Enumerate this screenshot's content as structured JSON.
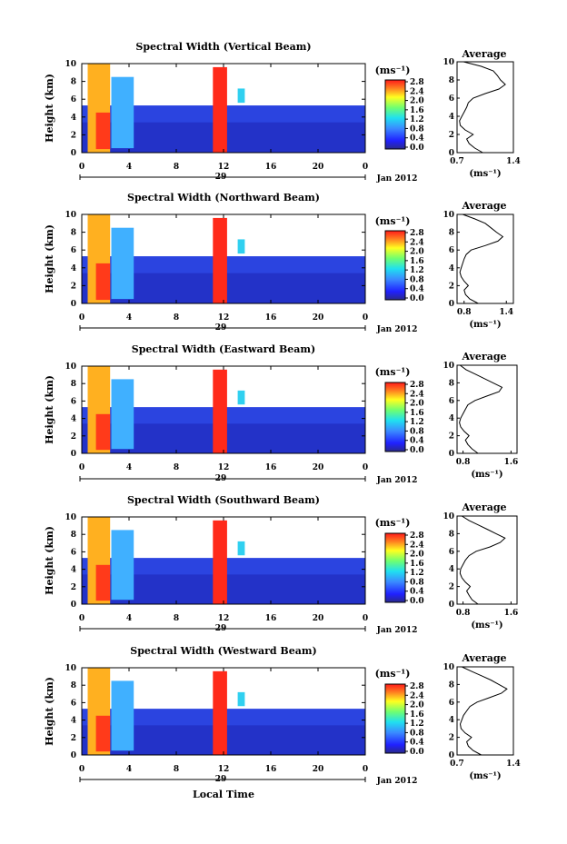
{
  "figure": {
    "common_xlabel": "Local Time",
    "date_label": "Jan 2012",
    "day_label": "29",
    "x_ticks": [
      "0",
      "4",
      "8",
      "12",
      "16",
      "20",
      "0"
    ],
    "y_ticks": [
      "0",
      "2",
      "4",
      "6",
      "8",
      "10"
    ],
    "ylabel": "Height (km)",
    "unit_label": "(ms⁻¹)",
    "profile_title": "Average",
    "colorbar_ticks": [
      "2.8",
      "2.4",
      "2.0",
      "1.6",
      "1.2",
      "0.8",
      "0.4",
      "0.0"
    ]
  },
  "chart_data": [
    {
      "type": "heatmap",
      "title": "Spectral Width (Vertical Beam)",
      "profile_xticks": [
        "0.7",
        "1.4"
      ],
      "profile_xlim": [
        0.7,
        1.4
      ],
      "profile_x": [
        1.02,
        0.92,
        0.85,
        0.82,
        0.9,
        0.8,
        0.74,
        0.73,
        0.76,
        0.79,
        0.82,
        0.84,
        0.9,
        1.05,
        1.22,
        1.3,
        1.24,
        1.2,
        1.15,
        1.0,
        0.78
      ],
      "profile_y": [
        0,
        0.5,
        1,
        1.5,
        2,
        2.5,
        3,
        3.5,
        4,
        4.5,
        5,
        5.5,
        6,
        6.5,
        7,
        7.5,
        8,
        8.5,
        9,
        9.5,
        10
      ]
    },
    {
      "type": "heatmap",
      "title": "Spectral Width (Northward Beam)",
      "profile_xticks": [
        "0.8",
        "1.4"
      ],
      "profile_xlim": [
        0.7,
        1.5
      ],
      "profile_x": [
        1.0,
        0.88,
        0.82,
        0.8,
        0.86,
        0.8,
        0.76,
        0.74,
        0.76,
        0.78,
        0.8,
        0.83,
        0.9,
        1.1,
        1.28,
        1.35,
        1.26,
        1.18,
        1.1,
        0.95,
        0.78
      ],
      "profile_y": [
        0,
        0.5,
        1,
        1.5,
        2,
        2.5,
        3,
        3.5,
        4,
        4.5,
        5,
        5.5,
        6,
        6.5,
        7,
        7.5,
        8,
        8.5,
        9,
        9.5,
        10
      ]
    },
    {
      "type": "heatmap",
      "title": "Spectral Width (Eastward Beam)",
      "profile_xticks": [
        "0.8",
        "1.6"
      ],
      "profile_xlim": [
        0.7,
        1.7
      ],
      "profile_x": [
        1.05,
        0.95,
        0.88,
        0.84,
        0.9,
        0.82,
        0.76,
        0.74,
        0.76,
        0.8,
        0.84,
        0.88,
        1.0,
        1.2,
        1.4,
        1.45,
        1.3,
        1.15,
        1.0,
        0.85,
        0.75
      ],
      "profile_y": [
        0,
        0.5,
        1,
        1.5,
        2,
        2.5,
        3,
        3.5,
        4,
        4.5,
        5,
        5.5,
        6,
        6.5,
        7,
        7.5,
        8,
        8.5,
        9,
        9.5,
        10
      ]
    },
    {
      "type": "heatmap",
      "title": "Spectral Width (Southward Beam)",
      "profile_xticks": [
        "0.8",
        "1.6"
      ],
      "profile_xlim": [
        0.7,
        1.7
      ],
      "profile_x": [
        1.05,
        0.95,
        0.9,
        0.86,
        0.92,
        0.84,
        0.78,
        0.75,
        0.76,
        0.8,
        0.84,
        0.9,
        1.02,
        1.25,
        1.42,
        1.5,
        1.35,
        1.2,
        1.05,
        0.9,
        0.78
      ],
      "profile_y": [
        0,
        0.5,
        1,
        1.5,
        2,
        2.5,
        3,
        3.5,
        4,
        4.5,
        5,
        5.5,
        6,
        6.5,
        7,
        7.5,
        8,
        8.5,
        9,
        9.5,
        10
      ]
    },
    {
      "type": "heatmap",
      "title": "Spectral Width (Westward Beam)",
      "profile_xticks": [
        "0.7",
        "1.4"
      ],
      "profile_xlim": [
        0.7,
        1.4
      ],
      "profile_x": [
        1.0,
        0.9,
        0.84,
        0.82,
        0.88,
        0.8,
        0.75,
        0.74,
        0.76,
        0.78,
        0.82,
        0.86,
        0.95,
        1.1,
        1.25,
        1.32,
        1.22,
        1.12,
        1.0,
        0.88,
        0.76
      ],
      "profile_y": [
        0,
        0.5,
        1,
        1.5,
        2,
        2.5,
        3,
        3.5,
        4,
        4.5,
        5,
        5.5,
        6,
        6.5,
        7,
        7.5,
        8,
        8.5,
        9,
        9.5,
        10
      ]
    }
  ]
}
